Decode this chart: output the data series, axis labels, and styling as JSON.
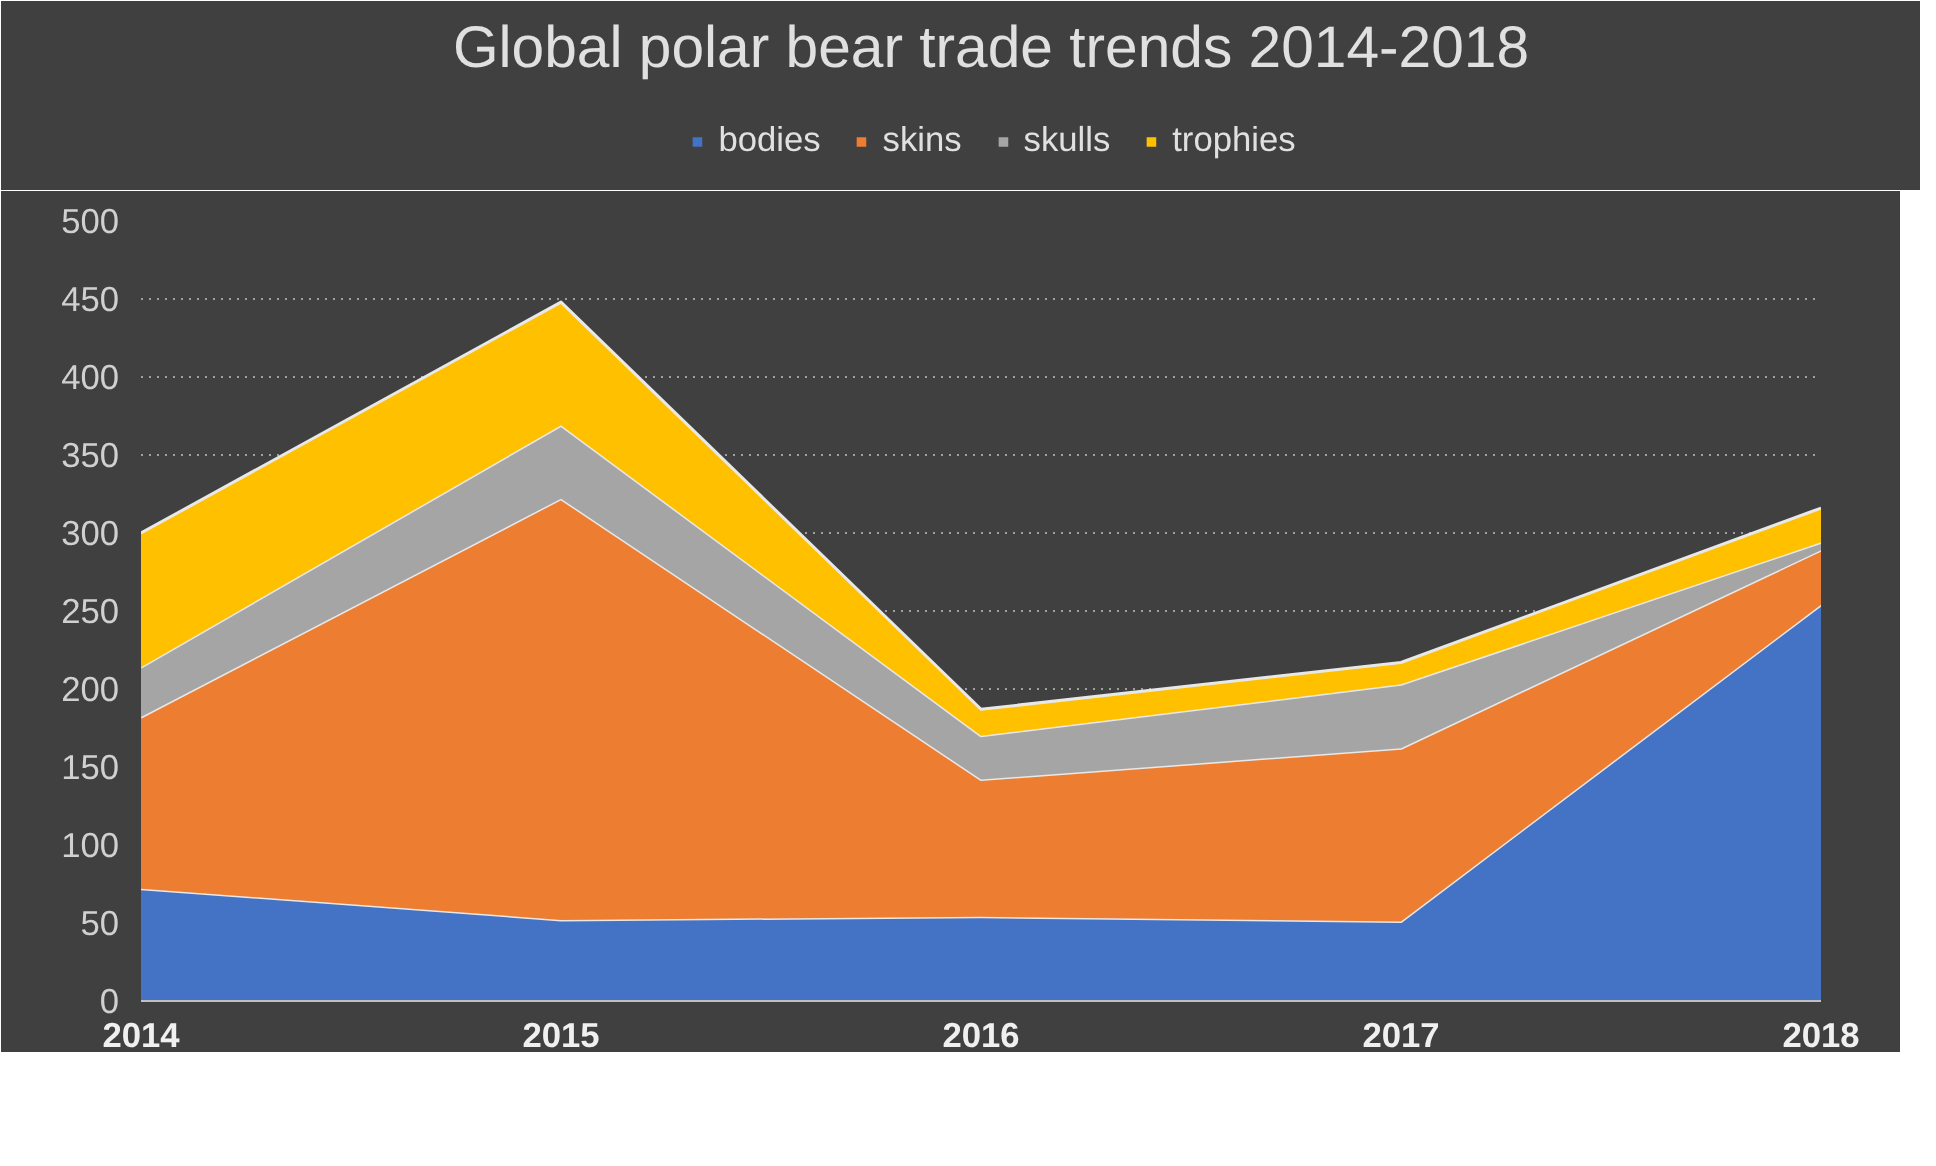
{
  "chart_data": {
    "type": "area",
    "title": "Global polar bear trade trends 2014-2018",
    "stacked": true,
    "x": [
      2014,
      2015,
      2016,
      2017,
      2018
    ],
    "xlim": [
      2014,
      2018
    ],
    "xticks": [
      2014,
      2015,
      2016,
      2017,
      2018
    ],
    "ylim": [
      0,
      500
    ],
    "yticks": [
      0,
      50,
      100,
      150,
      200,
      250,
      300,
      350,
      400,
      450,
      500
    ],
    "grid": "y",
    "legend": "top",
    "series": [
      {
        "name": "bodies",
        "color": "#4472c4",
        "values": [
          72,
          52,
          54,
          51,
          254
        ]
      },
      {
        "name": "skins",
        "color": "#ed7d31",
        "values": [
          110,
          270,
          88,
          111,
          35
        ]
      },
      {
        "name": "skulls",
        "color": "#a5a5a5",
        "values": [
          32,
          47,
          28,
          41,
          5
        ]
      },
      {
        "name": "trophies",
        "color": "#ffc000",
        "values": [
          86,
          79,
          17,
          14,
          22
        ]
      }
    ]
  }
}
